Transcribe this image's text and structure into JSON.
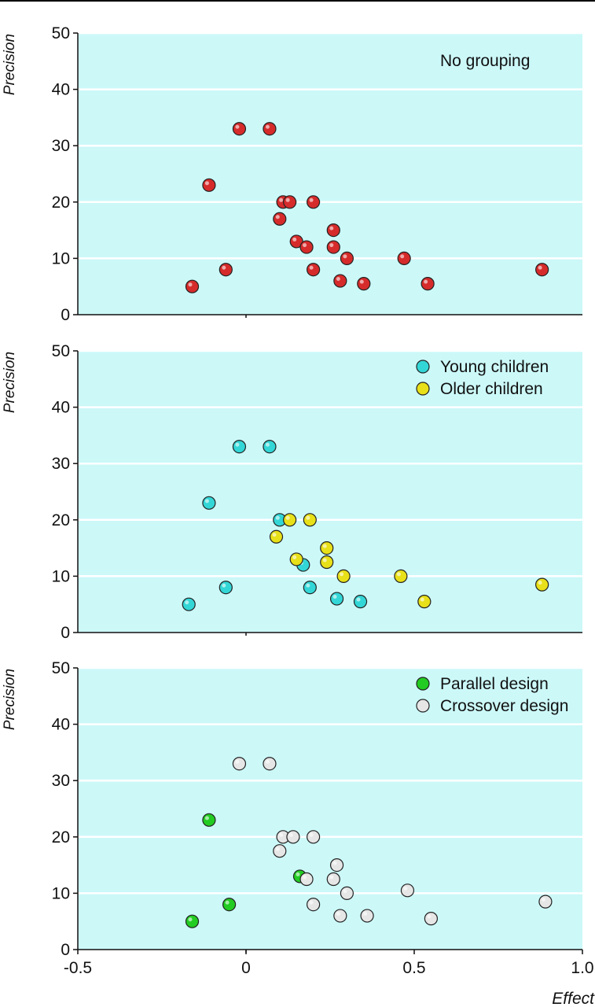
{
  "chart_data": [
    {
      "type": "scatter",
      "ylabel": "Precision",
      "xlabel": "",
      "xlim": [
        -0.5,
        1.0
      ],
      "ylim": [
        0,
        50
      ],
      "annotation": "No grouping",
      "legend_placement": "top-right",
      "series": [
        {
          "color": "#d62b2b",
          "points": [
            [
              -0.16,
              5
            ],
            [
              -0.06,
              8
            ],
            [
              -0.11,
              23
            ],
            [
              -0.02,
              33
            ],
            [
              0.07,
              33
            ],
            [
              0.1,
              17
            ],
            [
              0.11,
              20
            ],
            [
              0.13,
              20
            ],
            [
              0.15,
              13
            ],
            [
              0.18,
              12
            ],
            [
              0.2,
              8
            ],
            [
              0.2,
              20
            ],
            [
              0.26,
              12
            ],
            [
              0.26,
              15
            ],
            [
              0.28,
              6
            ],
            [
              0.3,
              10
            ],
            [
              0.35,
              5.5
            ],
            [
              0.47,
              10
            ],
            [
              0.54,
              5.5
            ],
            [
              0.88,
              8
            ]
          ]
        }
      ]
    },
    {
      "type": "scatter",
      "ylabel": "Precision",
      "xlabel": "",
      "xlim": [
        -0.5,
        1.0
      ],
      "ylim": [
        0,
        50
      ],
      "legend_placement": "top-right",
      "series": [
        {
          "name": "Young children",
          "color": "#33d6d6",
          "points": [
            [
              -0.17,
              5
            ],
            [
              -0.06,
              8
            ],
            [
              -0.11,
              23
            ],
            [
              -0.02,
              33
            ],
            [
              0.07,
              33
            ],
            [
              0.1,
              20
            ],
            [
              0.17,
              12
            ],
            [
              0.19,
              8
            ],
            [
              0.27,
              6
            ],
            [
              0.34,
              5.5
            ]
          ]
        },
        {
          "name": "Older children",
          "color": "#e8e019",
          "points": [
            [
              0.09,
              17
            ],
            [
              0.13,
              20
            ],
            [
              0.15,
              13
            ],
            [
              0.19,
              20
            ],
            [
              0.24,
              12.5
            ],
            [
              0.24,
              15
            ],
            [
              0.29,
              10
            ],
            [
              0.46,
              10
            ],
            [
              0.53,
              5.5
            ],
            [
              0.88,
              8.5
            ]
          ]
        }
      ]
    },
    {
      "type": "scatter",
      "ylabel": "Precision",
      "xlabel": "Effect",
      "xlim": [
        -0.5,
        1.0
      ],
      "ylim": [
        0,
        50
      ],
      "xticks": [
        -0.5,
        0,
        0.5,
        1.0
      ],
      "xticklabels": [
        "-0.5",
        "0",
        "0.5",
        "1.0"
      ],
      "legend_placement": "top-right",
      "series": [
        {
          "name": "Parallel design",
          "color": "#22cc22",
          "points": [
            [
              -0.16,
              5
            ],
            [
              -0.05,
              8
            ],
            [
              -0.11,
              23
            ],
            [
              0.16,
              13
            ]
          ]
        },
        {
          "name": "Crossover design",
          "color": "#e6e6e6",
          "points": [
            [
              -0.02,
              33
            ],
            [
              0.07,
              33
            ],
            [
              0.1,
              17.5
            ],
            [
              0.11,
              20
            ],
            [
              0.14,
              20
            ],
            [
              0.18,
              12.5
            ],
            [
              0.2,
              8
            ],
            [
              0.2,
              20
            ],
            [
              0.26,
              12.5
            ],
            [
              0.27,
              15
            ],
            [
              0.28,
              6
            ],
            [
              0.3,
              10
            ],
            [
              0.36,
              6
            ],
            [
              0.48,
              10.5
            ],
            [
              0.55,
              5.5
            ],
            [
              0.89,
              8.5
            ]
          ]
        }
      ]
    }
  ],
  "yticks": [
    "0",
    "10",
    "20",
    "30",
    "40",
    "50"
  ],
  "colors": {
    "panel_background": "#ccf8f8",
    "gridline": "#ffffff",
    "axis": "#111111"
  }
}
